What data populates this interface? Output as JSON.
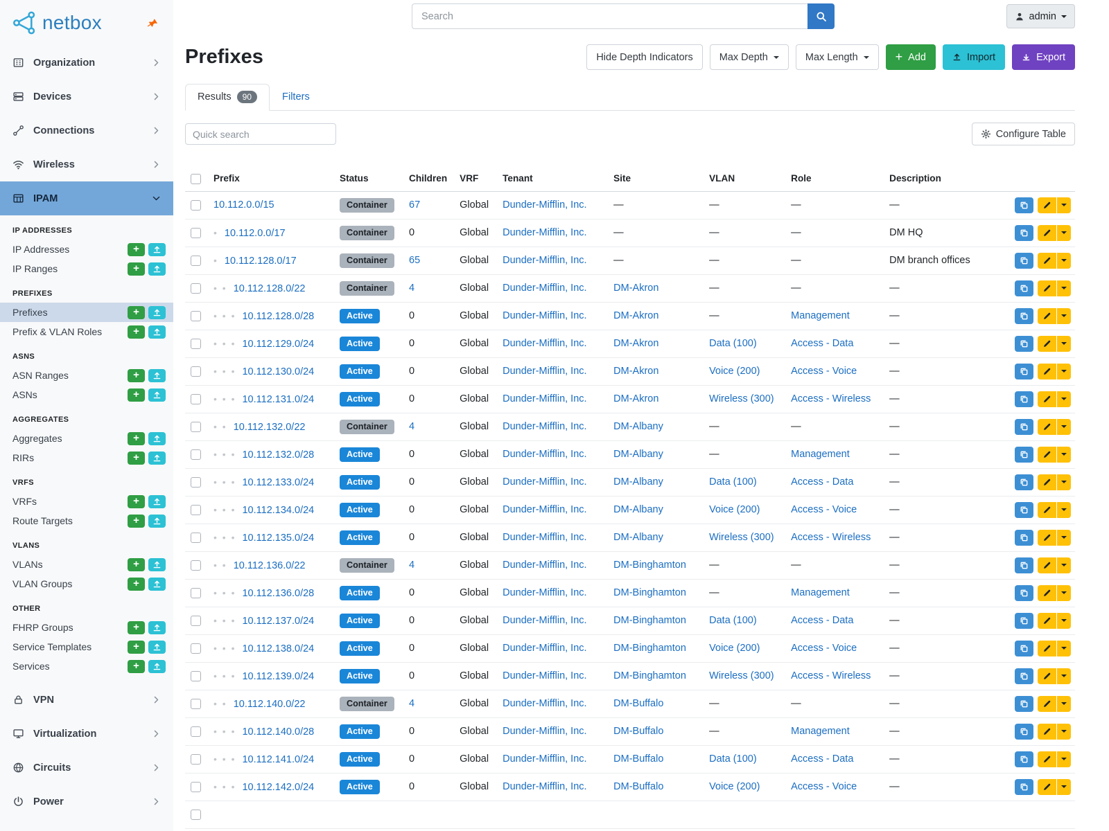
{
  "brand": {
    "name": "netbox"
  },
  "topbar": {
    "search_placeholder": "Search",
    "user": "admin"
  },
  "sidebar": {
    "top": [
      {
        "label": "Organization",
        "icon": "building-icon"
      },
      {
        "label": "Devices",
        "icon": "devices-icon"
      },
      {
        "label": "Connections",
        "icon": "connections-icon"
      },
      {
        "label": "Wireless",
        "icon": "wifi-icon"
      },
      {
        "label": "IPAM",
        "icon": "ipam-icon",
        "active": true,
        "expanded": true
      },
      {
        "label": "VPN",
        "icon": "vpn-icon"
      },
      {
        "label": "Virtualization",
        "icon": "virtualization-icon"
      },
      {
        "label": "Circuits",
        "icon": "circuits-icon"
      },
      {
        "label": "Power",
        "icon": "power-icon"
      }
    ],
    "ipam_groups": [
      {
        "heading": "IP ADDRESSES",
        "items": [
          {
            "label": "IP Addresses"
          },
          {
            "label": "IP Ranges"
          }
        ]
      },
      {
        "heading": "PREFIXES",
        "items": [
          {
            "label": "Prefixes",
            "active": true
          },
          {
            "label": "Prefix & VLAN Roles"
          }
        ]
      },
      {
        "heading": "ASNS",
        "items": [
          {
            "label": "ASN Ranges"
          },
          {
            "label": "ASNs"
          }
        ]
      },
      {
        "heading": "AGGREGATES",
        "items": [
          {
            "label": "Aggregates"
          },
          {
            "label": "RIRs"
          }
        ]
      },
      {
        "heading": "VRFS",
        "items": [
          {
            "label": "VRFs"
          },
          {
            "label": "Route Targets"
          }
        ]
      },
      {
        "heading": "VLANS",
        "items": [
          {
            "label": "VLANs"
          },
          {
            "label": "VLAN Groups"
          }
        ]
      },
      {
        "heading": "OTHER",
        "items": [
          {
            "label": "FHRP Groups"
          },
          {
            "label": "Service Templates"
          },
          {
            "label": "Services"
          }
        ]
      }
    ]
  },
  "page": {
    "title": "Prefixes",
    "toolbar": {
      "hide_depth": "Hide Depth Indicators",
      "max_depth": "Max Depth",
      "max_length": "Max Length",
      "add": "Add",
      "import": "Import",
      "export": "Export"
    },
    "tabs": {
      "results": "Results",
      "results_count": "90",
      "filters": "Filters"
    },
    "quick_search_placeholder": "Quick search",
    "configure_table": "Configure Table"
  },
  "table": {
    "empty_placeholder": "—",
    "columns": [
      "Prefix",
      "Status",
      "Children",
      "VRF",
      "Tenant",
      "Site",
      "VLAN",
      "Role",
      "Description"
    ],
    "rows": [
      {
        "prefix": "10.112.0.0/15",
        "depth": 0,
        "status": "Container",
        "children": "67",
        "vrf": "Global",
        "tenant": "Dunder-Mifflin, Inc.",
        "site": "",
        "vlan": "",
        "role": "",
        "description": ""
      },
      {
        "prefix": "10.112.0.0/17",
        "depth": 1,
        "status": "Container",
        "children": "0",
        "vrf": "Global",
        "tenant": "Dunder-Mifflin, Inc.",
        "site": "",
        "vlan": "",
        "role": "",
        "description": "DM HQ"
      },
      {
        "prefix": "10.112.128.0/17",
        "depth": 1,
        "status": "Container",
        "children": "65",
        "vrf": "Global",
        "tenant": "Dunder-Mifflin, Inc.",
        "site": "",
        "vlan": "",
        "role": "",
        "description": "DM branch offices"
      },
      {
        "prefix": "10.112.128.0/22",
        "depth": 2,
        "status": "Container",
        "children": "4",
        "vrf": "Global",
        "tenant": "Dunder-Mifflin, Inc.",
        "site": "DM-Akron",
        "vlan": "",
        "role": "",
        "description": ""
      },
      {
        "prefix": "10.112.128.0/28",
        "depth": 3,
        "status": "Active",
        "children": "0",
        "vrf": "Global",
        "tenant": "Dunder-Mifflin, Inc.",
        "site": "DM-Akron",
        "vlan": "",
        "role": "Management",
        "description": ""
      },
      {
        "prefix": "10.112.129.0/24",
        "depth": 3,
        "status": "Active",
        "children": "0",
        "vrf": "Global",
        "tenant": "Dunder-Mifflin, Inc.",
        "site": "DM-Akron",
        "vlan": "Data (100)",
        "role": "Access - Data",
        "description": ""
      },
      {
        "prefix": "10.112.130.0/24",
        "depth": 3,
        "status": "Active",
        "children": "0",
        "vrf": "Global",
        "tenant": "Dunder-Mifflin, Inc.",
        "site": "DM-Akron",
        "vlan": "Voice (200)",
        "role": "Access - Voice",
        "description": ""
      },
      {
        "prefix": "10.112.131.0/24",
        "depth": 3,
        "status": "Active",
        "children": "0",
        "vrf": "Global",
        "tenant": "Dunder-Mifflin, Inc.",
        "site": "DM-Akron",
        "vlan": "Wireless (300)",
        "role": "Access - Wireless",
        "description": ""
      },
      {
        "prefix": "10.112.132.0/22",
        "depth": 2,
        "status": "Container",
        "children": "4",
        "vrf": "Global",
        "tenant": "Dunder-Mifflin, Inc.",
        "site": "DM-Albany",
        "vlan": "",
        "role": "",
        "description": ""
      },
      {
        "prefix": "10.112.132.0/28",
        "depth": 3,
        "status": "Active",
        "children": "0",
        "vrf": "Global",
        "tenant": "Dunder-Mifflin, Inc.",
        "site": "DM-Albany",
        "vlan": "",
        "role": "Management",
        "description": ""
      },
      {
        "prefix": "10.112.133.0/24",
        "depth": 3,
        "status": "Active",
        "children": "0",
        "vrf": "Global",
        "tenant": "Dunder-Mifflin, Inc.",
        "site": "DM-Albany",
        "vlan": "Data (100)",
        "role": "Access - Data",
        "description": ""
      },
      {
        "prefix": "10.112.134.0/24",
        "depth": 3,
        "status": "Active",
        "children": "0",
        "vrf": "Global",
        "tenant": "Dunder-Mifflin, Inc.",
        "site": "DM-Albany",
        "vlan": "Voice (200)",
        "role": "Access - Voice",
        "description": ""
      },
      {
        "prefix": "10.112.135.0/24",
        "depth": 3,
        "status": "Active",
        "children": "0",
        "vrf": "Global",
        "tenant": "Dunder-Mifflin, Inc.",
        "site": "DM-Albany",
        "vlan": "Wireless (300)",
        "role": "Access - Wireless",
        "description": ""
      },
      {
        "prefix": "10.112.136.0/22",
        "depth": 2,
        "status": "Container",
        "children": "4",
        "vrf": "Global",
        "tenant": "Dunder-Mifflin, Inc.",
        "site": "DM-Binghamton",
        "vlan": "",
        "role": "",
        "description": ""
      },
      {
        "prefix": "10.112.136.0/28",
        "depth": 3,
        "status": "Active",
        "children": "0",
        "vrf": "Global",
        "tenant": "Dunder-Mifflin, Inc.",
        "site": "DM-Binghamton",
        "vlan": "",
        "role": "Management",
        "description": ""
      },
      {
        "prefix": "10.112.137.0/24",
        "depth": 3,
        "status": "Active",
        "children": "0",
        "vrf": "Global",
        "tenant": "Dunder-Mifflin, Inc.",
        "site": "DM-Binghamton",
        "vlan": "Data (100)",
        "role": "Access - Data",
        "description": ""
      },
      {
        "prefix": "10.112.138.0/24",
        "depth": 3,
        "status": "Active",
        "children": "0",
        "vrf": "Global",
        "tenant": "Dunder-Mifflin, Inc.",
        "site": "DM-Binghamton",
        "vlan": "Voice (200)",
        "role": "Access - Voice",
        "description": ""
      },
      {
        "prefix": "10.112.139.0/24",
        "depth": 3,
        "status": "Active",
        "children": "0",
        "vrf": "Global",
        "tenant": "Dunder-Mifflin, Inc.",
        "site": "DM-Binghamton",
        "vlan": "Wireless (300)",
        "role": "Access - Wireless",
        "description": ""
      },
      {
        "prefix": "10.112.140.0/22",
        "depth": 2,
        "status": "Container",
        "children": "4",
        "vrf": "Global",
        "tenant": "Dunder-Mifflin, Inc.",
        "site": "DM-Buffalo",
        "vlan": "",
        "role": "",
        "description": ""
      },
      {
        "prefix": "10.112.140.0/28",
        "depth": 3,
        "status": "Active",
        "children": "0",
        "vrf": "Global",
        "tenant": "Dunder-Mifflin, Inc.",
        "site": "DM-Buffalo",
        "vlan": "",
        "role": "Management",
        "description": ""
      },
      {
        "prefix": "10.112.141.0/24",
        "depth": 3,
        "status": "Active",
        "children": "0",
        "vrf": "Global",
        "tenant": "Dunder-Mifflin, Inc.",
        "site": "DM-Buffalo",
        "vlan": "Data (100)",
        "role": "Access - Data",
        "description": ""
      },
      {
        "prefix": "10.112.142.0/24",
        "depth": 3,
        "status": "Active",
        "children": "0",
        "vrf": "Global",
        "tenant": "Dunder-Mifflin, Inc.",
        "site": "DM-Buffalo",
        "vlan": "Voice (200)",
        "role": "Access - Voice",
        "description": ""
      },
      {
        "prefix": "",
        "depth": 0,
        "status": "",
        "children": "",
        "vrf": "",
        "tenant": "",
        "site": "",
        "vlan": "",
        "role": "",
        "description": ""
      }
    ]
  },
  "colors": {
    "link": "#1b6ec2",
    "brand_blue": "#2b7fbf",
    "nav_active_bg": "#74a7d9",
    "subnav_active_bg": "#ccd9ea",
    "badge_active": "#1a86d8",
    "badge_container_bg": "#aab2bb",
    "green": "#2f9e44",
    "cyan": "#2cc1d4",
    "purple": "#6f42c1",
    "yellow": "#ffc107",
    "row_action_blue": "#3d8fd4",
    "search_button_blue": "#3178c6",
    "pin_orange": "#f76707"
  }
}
